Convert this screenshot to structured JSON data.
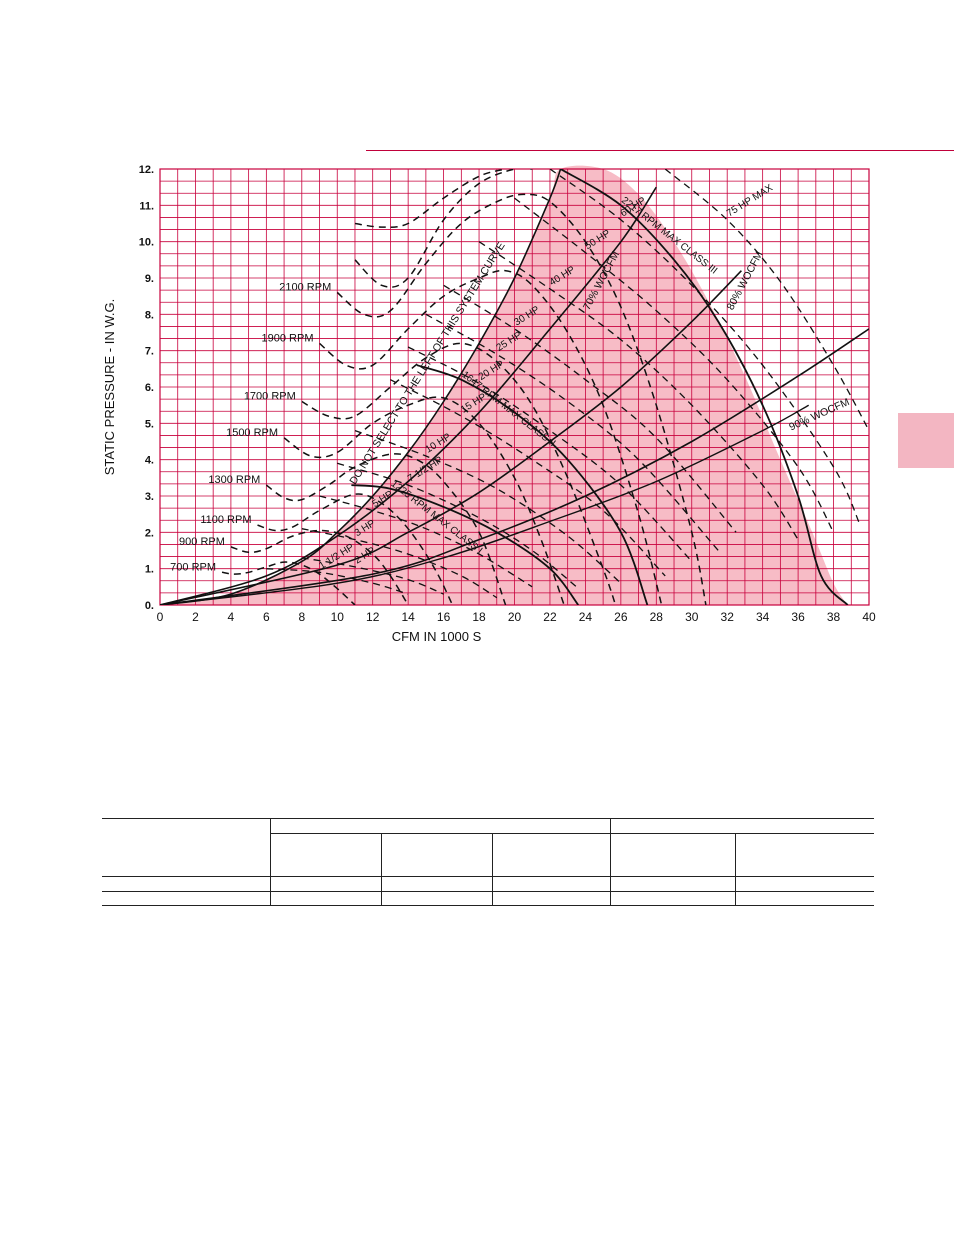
{
  "chart_data": {
    "type": "line",
    "title": "",
    "xlabel": "CFM IN 1000 S",
    "ylabel": "STATIC PRESSURE - IN W.G.",
    "xlim": [
      0,
      40
    ],
    "ylim": [
      0,
      12
    ],
    "grid": true,
    "x_ticks": [
      "0",
      "2",
      "4",
      "6",
      "8",
      "10",
      "12",
      "14",
      "16",
      "18",
      "20",
      "22",
      "24",
      "26",
      "28",
      "30",
      "32",
      "34",
      "36",
      "38",
      "40"
    ],
    "y_ticks": [
      "0.",
      "1.",
      "2.",
      "3.",
      "4.",
      "5.",
      "6.",
      "7.",
      "8.",
      "9.",
      "10.",
      "11.",
      "12."
    ],
    "colors": {
      "grid": "#c8003c",
      "shade": "#f7bcc6",
      "curve": "#111111"
    },
    "rpm_curves": [
      {
        "name": "700 RPM",
        "points": [
          [
            3.5,
            0.9
          ],
          [
            4.2,
            0.85
          ],
          [
            5,
            0.9
          ],
          [
            6,
            1.05
          ],
          [
            7,
            1.18
          ],
          [
            8,
            1.1
          ],
          [
            9,
            0.85
          ],
          [
            10,
            0.45
          ],
          [
            11,
            0
          ]
        ]
      },
      {
        "name": "900 RPM",
        "points": [
          [
            4,
            1.6
          ],
          [
            5,
            1.45
          ],
          [
            6,
            1.55
          ],
          [
            7.5,
            1.9
          ],
          [
            9,
            2.05
          ],
          [
            10.5,
            1.9
          ],
          [
            12,
            1.4
          ],
          [
            13,
            0.8
          ],
          [
            14,
            0
          ]
        ]
      },
      {
        "name": "1100 RPM",
        "points": [
          [
            5.5,
            2.2
          ],
          [
            6.5,
            2.05
          ],
          [
            7.5,
            2.15
          ],
          [
            9,
            2.6
          ],
          [
            11,
            3.05
          ],
          [
            12.5,
            2.8
          ],
          [
            14,
            2.1
          ],
          [
            15.5,
            1.0
          ],
          [
            16.5,
            0
          ]
        ]
      },
      {
        "name": "1300 RPM",
        "points": [
          [
            6,
            3.3
          ],
          [
            7,
            2.95
          ],
          [
            8,
            2.9
          ],
          [
            9.5,
            3.3
          ],
          [
            11,
            3.8
          ],
          [
            13,
            4.15
          ],
          [
            14.5,
            4.0
          ],
          [
            16,
            3.4
          ],
          [
            18,
            2.0
          ],
          [
            19.5,
            0
          ]
        ]
      },
      {
        "name": "1500 RPM",
        "points": [
          [
            7,
            4.6
          ],
          [
            8.5,
            4.1
          ],
          [
            10,
            4.2
          ],
          [
            12,
            5.0
          ],
          [
            14,
            5.5
          ],
          [
            16,
            5.7
          ],
          [
            18,
            5.0
          ],
          [
            20,
            3.5
          ],
          [
            21.5,
            1.8
          ],
          [
            22.8,
            0
          ]
        ]
      },
      {
        "name": "1700 RPM",
        "points": [
          [
            8,
            5.6
          ],
          [
            9.5,
            5.2
          ],
          [
            11,
            5.2
          ],
          [
            13,
            6.0
          ],
          [
            15,
            6.8
          ],
          [
            17,
            7.2
          ],
          [
            19,
            6.7
          ],
          [
            21,
            5.5
          ],
          [
            23,
            3.5
          ],
          [
            25,
            1.0
          ],
          [
            25.7,
            0
          ]
        ]
      },
      {
        "name": "1900 RPM",
        "points": [
          [
            9,
            7.2
          ],
          [
            10.5,
            6.6
          ],
          [
            12,
            6.6
          ],
          [
            14,
            7.6
          ],
          [
            16,
            8.5
          ],
          [
            18,
            9.0
          ],
          [
            19.5,
            9.2
          ],
          [
            21,
            8.8
          ],
          [
            23,
            7.5
          ],
          [
            25,
            5.5
          ],
          [
            27,
            2.5
          ],
          [
            28.3,
            0
          ]
        ]
      },
      {
        "name": "2100 RPM",
        "points": [
          [
            10,
            8.6
          ],
          [
            11.5,
            8.0
          ],
          [
            13,
            8.1
          ],
          [
            15,
            9.4
          ],
          [
            17,
            10.5
          ],
          [
            19,
            11.1
          ],
          [
            20.5,
            11.3
          ],
          [
            22,
            11.1
          ],
          [
            24,
            10.0
          ],
          [
            26,
            8.2
          ],
          [
            28,
            5.5
          ],
          [
            30,
            2.0
          ],
          [
            30.8,
            0
          ]
        ]
      },
      {
        "name": "",
        "points": [
          [
            11,
            9.5
          ],
          [
            12.5,
            8.8
          ],
          [
            14,
            9.0
          ],
          [
            16,
            10.6
          ],
          [
            18,
            11.6
          ],
          [
            20,
            12.0
          ],
          [
            21,
            12.0
          ]
        ]
      },
      {
        "name": "",
        "points": [
          [
            11,
            10.5
          ],
          [
            12.5,
            10.4
          ],
          [
            14,
            10.5
          ],
          [
            16,
            11.2
          ],
          [
            18,
            11.8
          ],
          [
            19.5,
            12.0
          ]
        ]
      }
    ],
    "system_curves": [
      {
        "name": "",
        "points": [
          [
            0,
            0
          ],
          [
            4,
            0.3
          ],
          [
            8,
            1.2
          ],
          [
            10,
            2.0
          ],
          [
            12,
            3.0
          ],
          [
            14,
            4.2
          ],
          [
            16,
            5.6
          ],
          [
            18,
            7.2
          ],
          [
            20,
            9.0
          ],
          [
            22,
            11.2
          ],
          [
            22.6,
            12.0
          ]
        ]
      },
      {
        "name": "",
        "points": [
          [
            0,
            0
          ],
          [
            6,
            0.8
          ],
          [
            10,
            1.9
          ],
          [
            14,
            3.4
          ],
          [
            18,
            5.3
          ],
          [
            22,
            7.6
          ],
          [
            26,
            10.0
          ],
          [
            28,
            11.5
          ]
        ]
      },
      {
        "name": "",
        "points": [
          [
            0,
            0
          ],
          [
            10,
            1.1
          ],
          [
            14,
            2.0
          ],
          [
            18,
            3.1
          ],
          [
            22,
            4.5
          ],
          [
            26,
            6.0
          ],
          [
            30,
            7.8
          ],
          [
            32.8,
            9.2
          ]
        ]
      },
      {
        "name": "",
        "points": [
          [
            0,
            0
          ],
          [
            12,
            0.85
          ],
          [
            18,
            1.8
          ],
          [
            24,
            3.0
          ],
          [
            30,
            4.5
          ],
          [
            36,
            6.3
          ],
          [
            40,
            7.6
          ]
        ]
      }
    ],
    "woc_curves": [
      {
        "name": "90% WOCFM",
        "points": [
          [
            0,
            0
          ],
          [
            10,
            0.6
          ],
          [
            16,
            1.3
          ],
          [
            22,
            2.3
          ],
          [
            28,
            3.4
          ],
          [
            34,
            4.8
          ],
          [
            36.6,
            5.5
          ]
        ]
      }
    ],
    "hp_curves": [
      {
        "name": "1 1/2 HP",
        "points": [
          [
            6,
            1.0
          ],
          [
            9,
            0.9
          ],
          [
            12,
            0.6
          ],
          [
            14,
            0.3
          ]
        ]
      },
      {
        "name": "2 HP",
        "points": [
          [
            8,
            1.3
          ],
          [
            11,
            1.05
          ],
          [
            14,
            0.7
          ],
          [
            16,
            0.3
          ]
        ]
      },
      {
        "name": "3 HP",
        "points": [
          [
            8,
            2.1
          ],
          [
            11,
            1.8
          ],
          [
            14,
            1.4
          ],
          [
            17,
            0.8
          ],
          [
            19,
            0.2
          ]
        ]
      },
      {
        "name": "5 HP",
        "points": [
          [
            9,
            3.0
          ],
          [
            12,
            2.6
          ],
          [
            15,
            2.1
          ],
          [
            18,
            1.4
          ],
          [
            21,
            0.5
          ]
        ]
      },
      {
        "name": "7 1/2 HP",
        "points": [
          [
            10,
            3.9
          ],
          [
            14,
            3.3
          ],
          [
            18,
            2.4
          ],
          [
            21,
            1.5
          ],
          [
            23.5,
            0.5
          ]
        ]
      },
      {
        "name": "10 HP",
        "points": [
          [
            11,
            4.8
          ],
          [
            15,
            4.1
          ],
          [
            19,
            3.2
          ],
          [
            23,
            1.9
          ],
          [
            26,
            0.6
          ]
        ]
      },
      {
        "name": "15 HP",
        "points": [
          [
            13,
            6.2
          ],
          [
            17,
            5.2
          ],
          [
            21,
            4.0
          ],
          [
            25,
            2.6
          ],
          [
            28.5,
            0.8
          ]
        ]
      },
      {
        "name": "20 HP",
        "points": [
          [
            14,
            7.1
          ],
          [
            18,
            6.1
          ],
          [
            22,
            4.8
          ],
          [
            26,
            3.3
          ],
          [
            30,
            1.2
          ]
        ]
      },
      {
        "name": "25 HP",
        "points": [
          [
            15,
            8.0
          ],
          [
            19,
            6.9
          ],
          [
            23,
            5.6
          ],
          [
            27,
            4.0
          ],
          [
            31.5,
            1.5
          ]
        ]
      },
      {
        "name": "30 HP",
        "points": [
          [
            16,
            8.8
          ],
          [
            20,
            7.6
          ],
          [
            24,
            6.2
          ],
          [
            28,
            4.6
          ],
          [
            32.5,
            2.0
          ]
        ]
      },
      {
        "name": "40 HP",
        "points": [
          [
            18,
            10.0
          ],
          [
            22,
            8.7
          ],
          [
            26,
            7.3
          ],
          [
            30,
            5.5
          ],
          [
            34,
            3.3
          ],
          [
            36,
            1.8
          ]
        ]
      },
      {
        "name": "50 HP",
        "points": [
          [
            20,
            11.2
          ],
          [
            24,
            9.7
          ],
          [
            28,
            8.1
          ],
          [
            32,
            6.2
          ],
          [
            36,
            3.8
          ],
          [
            38,
            2.0
          ]
        ]
      },
      {
        "name": "60 HP",
        "points": [
          [
            22,
            12.0
          ],
          [
            26,
            10.6
          ],
          [
            30,
            8.8
          ],
          [
            34,
            6.6
          ],
          [
            38,
            3.8
          ],
          [
            39.5,
            2.2
          ]
        ]
      },
      {
        "name": "75 HP MAX",
        "points": [
          [
            28.5,
            12.0
          ],
          [
            32,
            10.6
          ],
          [
            35,
            8.9
          ],
          [
            38,
            6.6
          ],
          [
            40,
            4.8
          ]
        ]
      }
    ],
    "class_limits": [
      {
        "name": "1225 RPM MAX CLASS I",
        "points": [
          [
            10.8,
            3.3
          ],
          [
            13,
            3.2
          ],
          [
            16,
            2.7
          ],
          [
            19,
            2.0
          ],
          [
            22,
            1.0
          ],
          [
            23.6,
            0
          ]
        ]
      },
      {
        "name": "1647 RPM MAX CLASS II",
        "points": [
          [
            14.5,
            6.6
          ],
          [
            17,
            6.2
          ],
          [
            20,
            5.3
          ],
          [
            23,
            4.0
          ],
          [
            26,
            2.0
          ],
          [
            27.5,
            0
          ]
        ]
      },
      {
        "name": "2217 RPM MAX CLASS III",
        "points": [
          [
            22.6,
            12.0
          ],
          [
            26,
            11.0
          ],
          [
            29,
            9.5
          ],
          [
            31.5,
            7.8
          ],
          [
            34,
            5.5
          ],
          [
            36,
            3.0
          ],
          [
            37.3,
            0.8
          ],
          [
            38.8,
            0
          ]
        ]
      }
    ],
    "shaded_region": [
      [
        0,
        0
      ],
      [
        4,
        0.3
      ],
      [
        8,
        1.2
      ],
      [
        10,
        2.0
      ],
      [
        12,
        3.0
      ],
      [
        14,
        4.2
      ],
      [
        16,
        5.6
      ],
      [
        18,
        7.2
      ],
      [
        20,
        9.0
      ],
      [
        22,
        11.2
      ],
      [
        22.6,
        12.0
      ],
      [
        25,
        12.0
      ],
      [
        27,
        11.3
      ],
      [
        29,
        10.0
      ],
      [
        31,
        8.3
      ],
      [
        33,
        6.3
      ],
      [
        35,
        4.0
      ],
      [
        36.8,
        2.0
      ],
      [
        38,
        0.6
      ],
      [
        38.8,
        0
      ]
    ],
    "annotations": [
      {
        "text": "DO NOT SELECT TO THE LEFT OF THIS SYSTEM CURVE",
        "x": 11,
        "y": 3.3
      },
      {
        "text": "70% WOCFM",
        "x": 24.2,
        "y": 8.1
      },
      {
        "text": "80% WOCFM",
        "x": 32.3,
        "y": 8.1
      },
      {
        "text": "90% WOCFM",
        "x": 35.6,
        "y": 4.8
      }
    ]
  }
}
